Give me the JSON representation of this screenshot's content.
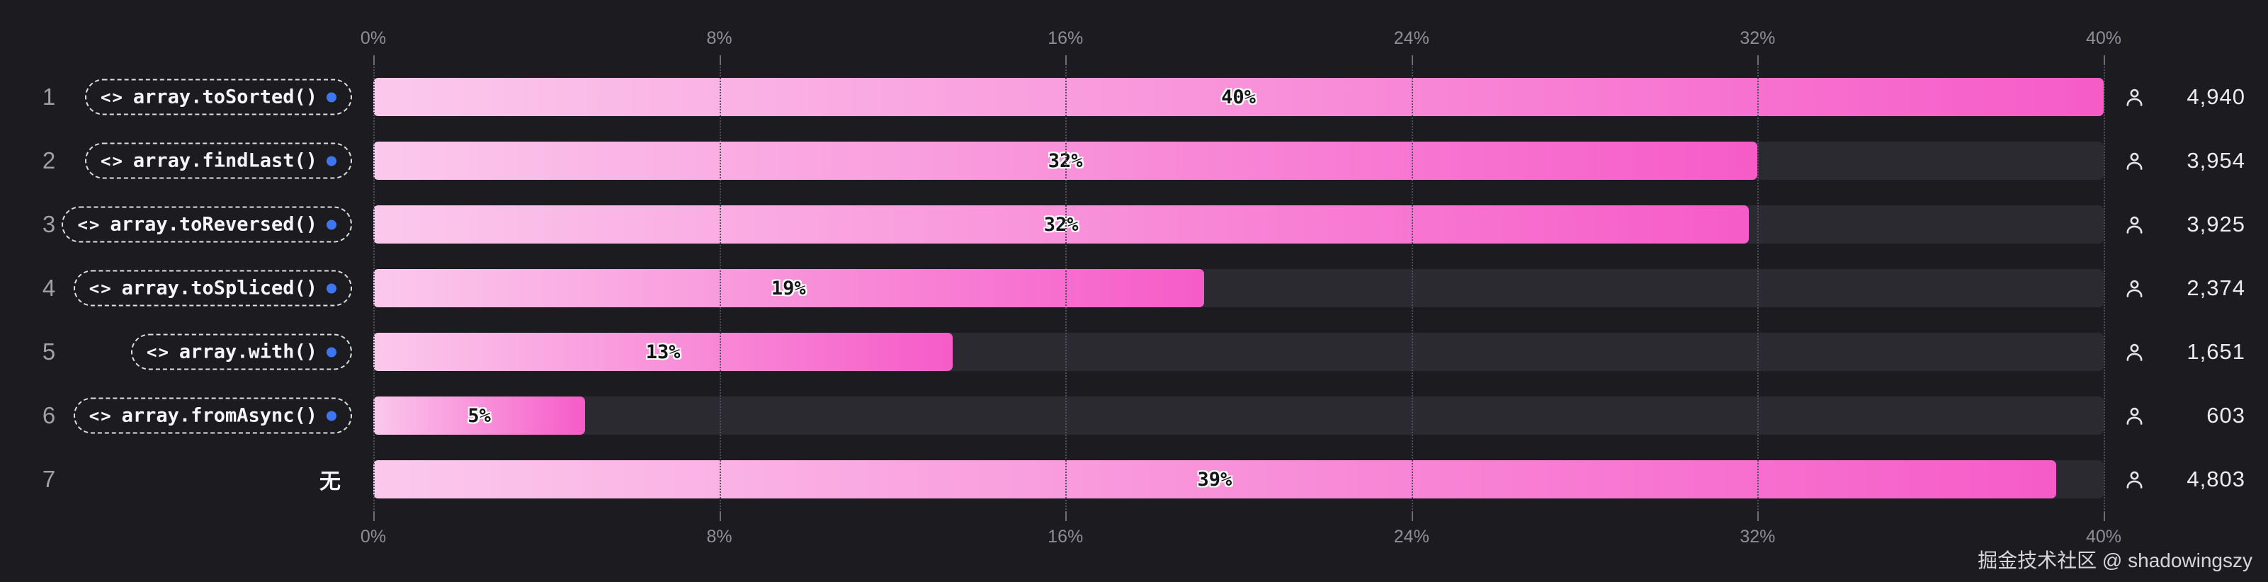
{
  "colors": {
    "background": "#1c1c20",
    "track": "#2a2a30",
    "bar_gradient_start": "#fbc9ec",
    "bar_gradient_end": "#f65bc8",
    "pill_border": "#dededf",
    "blue_dot": "#3d76f0",
    "axis_text": "#8e8e96",
    "gridline": "#50505a",
    "count_text": "#ececf0"
  },
  "icons": {
    "code": "<>",
    "person": "person-silhouette"
  },
  "axis": {
    "ticks": [
      "0%",
      "8%",
      "16%",
      "24%",
      "32%",
      "40%"
    ],
    "max_percent": 40
  },
  "watermark": "掘金技术社区 @ shadowingszy",
  "chart_data": {
    "type": "bar",
    "orientation": "horizontal",
    "max_percent": 40,
    "x_ticks": [
      "0%",
      "8%",
      "16%",
      "24%",
      "32%",
      "40%"
    ],
    "rows": [
      {
        "rank": "1",
        "label": "array.toSorted()",
        "has_pill": true,
        "percent_label": "40%",
        "percent": 40.0,
        "count": "4,940"
      },
      {
        "rank": "2",
        "label": "array.findLast()",
        "has_pill": true,
        "percent_label": "32%",
        "percent": 32.0,
        "count": "3,954"
      },
      {
        "rank": "3",
        "label": "array.toReversed()",
        "has_pill": true,
        "percent_label": "32%",
        "percent": 31.8,
        "count": "3,925"
      },
      {
        "rank": "4",
        "label": "array.toSpliced()",
        "has_pill": true,
        "percent_label": "19%",
        "percent": 19.2,
        "count": "2,374"
      },
      {
        "rank": "5",
        "label": "array.with()",
        "has_pill": true,
        "percent_label": "13%",
        "percent": 13.4,
        "count": "1,651"
      },
      {
        "rank": "6",
        "label": "array.fromAsync()",
        "has_pill": true,
        "percent_label": "5%",
        "percent": 4.9,
        "count": "603"
      },
      {
        "rank": "7",
        "label": "无",
        "has_pill": false,
        "percent_label": "39%",
        "percent": 38.9,
        "count": "4,803"
      }
    ]
  }
}
